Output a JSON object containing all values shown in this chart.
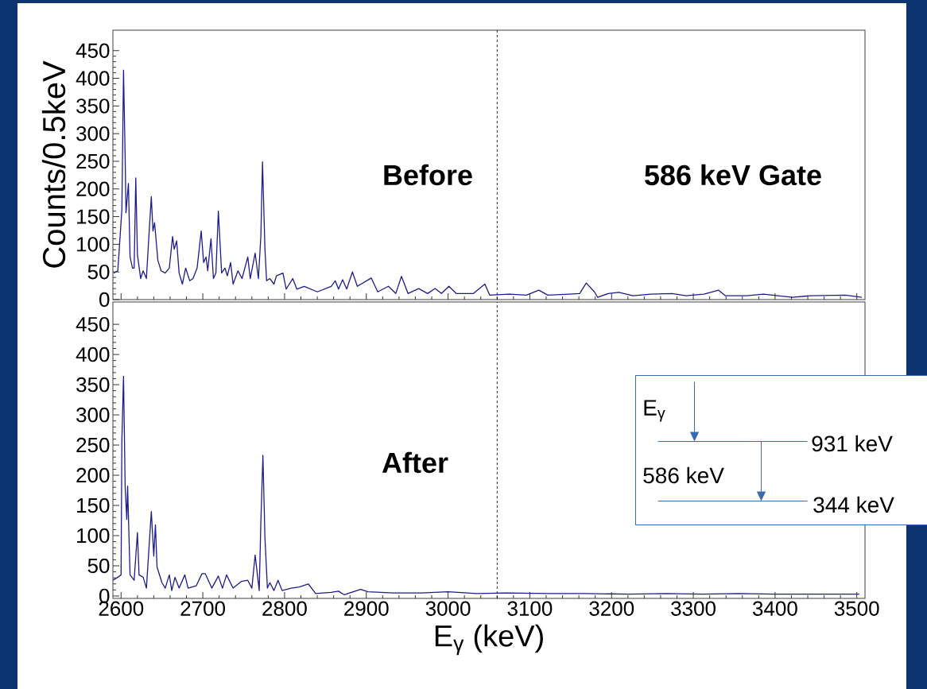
{
  "chart_data": [
    {
      "type": "line",
      "ylabel": "Counts/0.5keV",
      "xlim": [
        2590,
        3510
      ],
      "ylim": [
        0,
        487
      ],
      "xticks": [
        2600,
        2700,
        2800,
        2900,
        3000,
        3100,
        3200,
        3300,
        3400,
        3500
      ],
      "yticks": [
        0,
        50,
        100,
        150,
        200,
        250,
        300,
        350,
        400,
        450
      ],
      "tick_labels": "y",
      "marker": "none",
      "line_style": "solid",
      "ref_lines": [
        {
          "axis": "x",
          "value": 3060,
          "color": "#000000",
          "line_style": "dashed"
        }
      ],
      "annotations": [
        "Before",
        "586 keV Gate"
      ],
      "series": [
        {
          "color": "#1c1c8a",
          "x": [
            2591,
            2596,
            2601,
            2603,
            2605,
            2606,
            2609,
            2611,
            2614,
            2616,
            2618,
            2620,
            2624,
            2627,
            2631,
            2634,
            2637,
            2639,
            2641,
            2645,
            2649,
            2654,
            2659,
            2663,
            2665,
            2668,
            2671,
            2675,
            2679,
            2684,
            2688,
            2693,
            2698,
            2701,
            2704,
            2706,
            2710,
            2713,
            2716,
            2719,
            2723,
            2727,
            2730,
            2734,
            2737,
            2743,
            2748,
            2755,
            2758,
            2764,
            2768,
            2771,
            2773,
            2776,
            2778,
            2782,
            2787,
            2790,
            2798,
            2802,
            2810,
            2815,
            2824,
            2840,
            2857,
            2862,
            2866,
            2871,
            2876,
            2883,
            2889,
            2906,
            2914,
            2927,
            2936,
            2943,
            2951,
            2964,
            2975,
            2984,
            2992,
            3001,
            3010,
            3031,
            3045,
            3051,
            3075,
            3096,
            3111,
            3122,
            3149,
            3161,
            3169,
            3179,
            3183,
            3196,
            3209,
            3226,
            3248,
            3274,
            3291,
            3313,
            3331,
            3339,
            3365,
            3386,
            3421,
            3443,
            3486,
            3506
          ],
          "values": [
            48,
            52,
            163,
            415,
            258,
            157,
            210,
            77,
            57,
            57,
            220,
            81,
            38,
            52,
            38,
            114,
            186,
            124,
            139,
            71,
            52,
            48,
            57,
            114,
            91,
            106,
            48,
            28,
            57,
            34,
            38,
            57,
            124,
            67,
            77,
            52,
            110,
            38,
            48,
            160,
            48,
            57,
            43,
            67,
            28,
            52,
            38,
            77,
            38,
            84,
            38,
            115,
            249,
            91,
            34,
            38,
            28,
            43,
            48,
            19,
            38,
            19,
            24,
            14,
            24,
            34,
            19,
            36,
            19,
            50,
            24,
            39,
            14,
            24,
            11,
            42,
            11,
            20,
            11,
            20,
            11,
            24,
            11,
            11,
            28,
            8,
            10,
            8,
            17,
            8,
            10,
            11,
            30,
            14,
            4,
            11,
            13,
            7,
            10,
            11,
            7,
            10,
            17,
            7,
            7,
            10,
            4,
            7,
            8,
            4
          ]
        }
      ]
    },
    {
      "type": "line",
      "xlabel": "E$_{γ}$ (keV)",
      "xlim": [
        2590,
        3510
      ],
      "ylim": [
        -4,
        487
      ],
      "xticks": [
        2600,
        2700,
        2800,
        2900,
        3000,
        3100,
        3200,
        3300,
        3400,
        3500
      ],
      "yticks": [
        0,
        50,
        100,
        150,
        200,
        250,
        300,
        350,
        400,
        450
      ],
      "marker": "none",
      "line_style": "solid",
      "ref_lines": [
        {
          "axis": "x",
          "value": 3060,
          "color": "#000000",
          "line_style": "dashed"
        }
      ],
      "annotations": [
        "After",
        "E$_{γ}$",
        "931 keV",
        "586 keV",
        "344 keV"
      ],
      "series": [
        {
          "color": "#1c1c8a",
          "x": [
            2590,
            2596,
            2600,
            2601,
            2603,
            2605,
            2607,
            2608,
            2611,
            2616,
            2620,
            2622,
            2627,
            2631,
            2637,
            2640,
            2642,
            2644,
            2650,
            2654,
            2659,
            2662,
            2666,
            2671,
            2678,
            2682,
            2692,
            2699,
            2703,
            2711,
            2719,
            2724,
            2729,
            2737,
            2747,
            2755,
            2760,
            2764,
            2769,
            2771,
            2773.5,
            2776,
            2779,
            2782,
            2787,
            2792,
            2797,
            2808,
            2818,
            2829,
            2838,
            2857,
            2866,
            2873,
            2893,
            2902,
            2933,
            2968,
            3000,
            3035,
            3071,
            3124,
            3169,
            3222,
            3267,
            3311,
            3355,
            3400,
            3445,
            3503
          ],
          "values": [
            26,
            31,
            35,
            259,
            364,
            180,
            127,
            182,
            35,
            26,
            105,
            35,
            31,
            13,
            140,
            66,
            118,
            48,
            22,
            13,
            35,
            9,
            31,
            13,
            35,
            13,
            17,
            37,
            37,
            13,
            33,
            13,
            35,
            13,
            24,
            26,
            13,
            68,
            9,
            123,
            233,
            96,
            13,
            22,
            9,
            26,
            9,
            13,
            15,
            20,
            4,
            6,
            8,
            2,
            11,
            7,
            5,
            5,
            7,
            4,
            5,
            4,
            4,
            3,
            4,
            3,
            4,
            3,
            3,
            3
          ]
        }
      ]
    }
  ]
}
